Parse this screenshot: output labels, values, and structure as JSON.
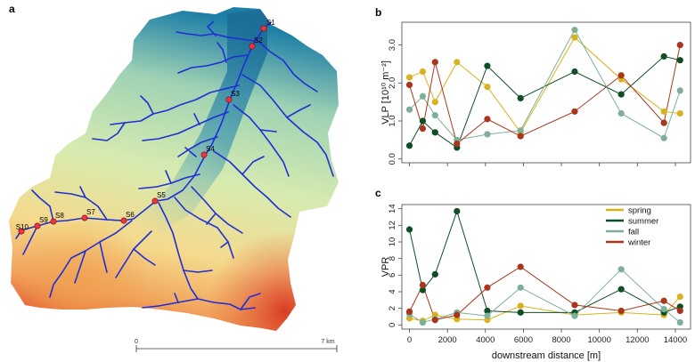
{
  "panel_a": {
    "label": "a",
    "scale_start": "0",
    "scale_end": "7 km",
    "site_color": "#e8363c",
    "river_color": "#1f2fd6",
    "sites": [
      "S1",
      "S2",
      "S3",
      "S4",
      "S5",
      "S6",
      "S7",
      "S8",
      "S9",
      "S10"
    ]
  },
  "legend": {
    "items": [
      {
        "name": "spring",
        "color": "#d9b21f"
      },
      {
        "name": "summer",
        "color": "#0f4d25"
      },
      {
        "name": "fall",
        "color": "#7faf98"
      },
      {
        "name": "winter",
        "color": "#a9361c"
      }
    ]
  },
  "chart_data": [
    {
      "type": "line",
      "panel": "b",
      "ylabel": "VLP [10¹⁰ m⁻²]",
      "xlabel": "",
      "xlim": [
        -400,
        14800
      ],
      "ylim": [
        -0.1,
        3.6
      ],
      "xticks": [
        0,
        2000,
        4000,
        6000,
        8000,
        10000,
        12000,
        14000
      ],
      "yticks": [
        0.0,
        1.0,
        2.0,
        3.0
      ],
      "ytick_labels": [
        "0.0",
        "1.0",
        "2.0",
        "3.0"
      ],
      "x": [
        0,
        700,
        1350,
        2500,
        4100,
        5850,
        8700,
        11150,
        13400,
        14250
      ],
      "series": [
        {
          "name": "spring",
          "color": "#d9b21f",
          "values": [
            2.15,
            2.3,
            1.5,
            2.55,
            1.9,
            0.7,
            3.2,
            2.1,
            1.25,
            1.2
          ]
        },
        {
          "name": "summer",
          "color": "#0f4d25",
          "values": [
            0.35,
            1.0,
            0.7,
            0.3,
            2.45,
            1.6,
            2.3,
            1.7,
            2.7,
            2.6
          ]
        },
        {
          "name": "fall",
          "color": "#7faf98",
          "values": [
            1.3,
            1.65,
            1.15,
            0.5,
            0.65,
            0.75,
            3.4,
            1.2,
            0.55,
            1.8
          ]
        },
        {
          "name": "winter",
          "color": "#a9361c",
          "values": [
            1.95,
            0.8,
            2.55,
            0.4,
            1.05,
            0.6,
            1.25,
            2.2,
            0.95,
            3.0
          ]
        }
      ]
    },
    {
      "type": "line",
      "panel": "c",
      "ylabel": "VPR",
      "xlabel": "downstream distance [m]",
      "xlim": [
        -400,
        14800
      ],
      "ylim": [
        -0.5,
        14.5
      ],
      "xticks": [
        0,
        2000,
        4000,
        6000,
        8000,
        10000,
        12000,
        14000
      ],
      "xtick_labels": [
        "0",
        "2000",
        "4000",
        "6000",
        "8000",
        "10000",
        "12000",
        "14000"
      ],
      "yticks": [
        0,
        2,
        4,
        6,
        8,
        10,
        12,
        14
      ],
      "ytick_labels": [
        "0",
        "2",
        "4",
        "6",
        "8",
        "10",
        "12",
        "14"
      ],
      "x": [
        0,
        700,
        1350,
        2500,
        4100,
        5850,
        8700,
        11150,
        13400,
        14250
      ],
      "series": [
        {
          "name": "spring",
          "color": "#d9b21f",
          "values": [
            0.8,
            0.5,
            1.2,
            0.7,
            0.6,
            2.3,
            1.2,
            1.5,
            1.2,
            3.4
          ]
        },
        {
          "name": "summer",
          "color": "#0f4d25",
          "values": [
            11.5,
            4.2,
            6.1,
            13.7,
            1.7,
            1.5,
            1.5,
            4.3,
            1.5,
            2.2
          ]
        },
        {
          "name": "fall",
          "color": "#7faf98",
          "values": [
            1.3,
            0.3,
            0.7,
            1.5,
            1.1,
            4.5,
            1.1,
            6.7,
            1.9,
            0.3
          ]
        },
        {
          "name": "winter",
          "color": "#a9361c",
          "values": [
            1.6,
            4.8,
            0.6,
            1.2,
            4.5,
            7.0,
            2.4,
            1.7,
            2.9,
            1.7
          ]
        }
      ]
    }
  ]
}
